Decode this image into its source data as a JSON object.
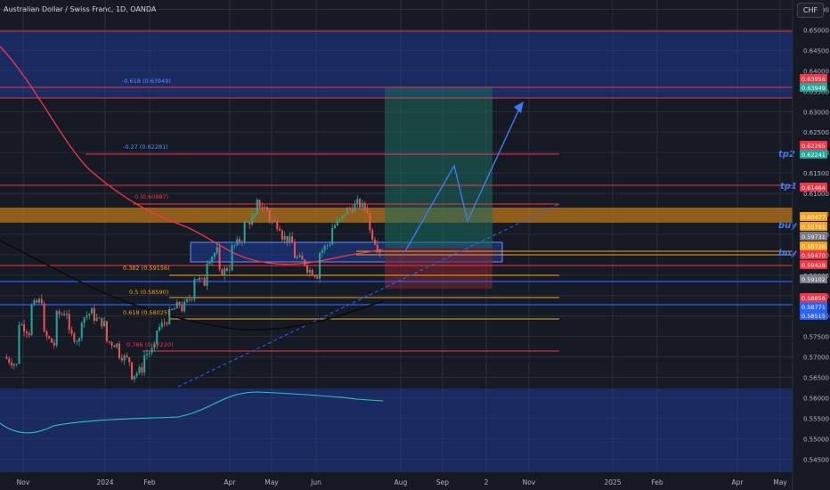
{
  "header": {
    "title": "Australian Dollar / Swiss Franc, 1D, OANDA",
    "currency_badge": "CHF"
  },
  "colors": {
    "background": "#161a25",
    "grid": "#2a2e39",
    "zone_blue": "#1f3a93",
    "zone_orange": "#b8751a",
    "red_line": "#f23645",
    "orange_line": "#f7a21b",
    "blue_line": "#2962ff",
    "target_green": "#1a6b5c",
    "candle_up": "#26a69a",
    "candle_down": "#ef5350",
    "arrow": "#3d7bf5",
    "oscillator": "#2ec4b6"
  },
  "chart_data": {
    "type": "candlestick",
    "symbol": "Australian Dollar / Swiss Franc",
    "timeframe": "1D",
    "source": "OANDA",
    "ylim": [
      0.5418,
      0.6573
    ],
    "y_ticks": [
      "0.65500",
      "0.65000",
      "0.64500",
      "0.64000",
      "0.63500",
      "0.63000",
      "0.62500",
      "0.62000",
      "0.61500",
      "0.61000",
      "0.60500",
      "0.60000",
      "0.59500",
      "0.59000",
      "0.58500",
      "0.58000",
      "0.57500",
      "0.57000",
      "0.56500",
      "0.56000",
      "0.55500",
      "0.55000",
      "0.54500"
    ],
    "x_ticks": [
      "Nov",
      "2024",
      "Feb",
      "Apr",
      "May",
      "Jun",
      "Aug",
      "Sep",
      "2",
      "Nov",
      "2025",
      "Feb",
      "Apr",
      "May"
    ],
    "price_path": [
      [
        0.57,
        0.568
      ],
      [
        0.579,
        0.576
      ],
      [
        0.582,
        0.584
      ],
      [
        0.576,
        0.573
      ],
      [
        0.58,
        0.581
      ],
      [
        0.576,
        0.574
      ],
      [
        0.579,
        0.581
      ],
      [
        0.58,
        0.578
      ],
      [
        0.574,
        0.573
      ],
      [
        0.571,
        0.569
      ],
      [
        0.565,
        0.567
      ],
      [
        0.57,
        0.572
      ],
      [
        0.576,
        0.579
      ],
      [
        0.58,
        0.583
      ],
      [
        0.581,
        0.585
      ],
      [
        0.59,
        0.588
      ],
      [
        0.593,
        0.596
      ],
      [
        0.59,
        0.592
      ],
      [
        0.596,
        0.599
      ],
      [
        0.602,
        0.604
      ],
      [
        0.608,
        0.606
      ],
      [
        0.604,
        0.602
      ],
      [
        0.6,
        0.598
      ],
      [
        0.595,
        0.593
      ],
      [
        0.592,
        0.59
      ],
      [
        0.595,
        0.598
      ],
      [
        0.601,
        0.604
      ],
      [
        0.605,
        0.607
      ],
      [
        0.608,
        0.606
      ],
      [
        0.602,
        0.596
      ]
    ],
    "fibonacci": [
      {
        "label": "-0.618 (0.63949)",
        "price": 0.63949
      },
      {
        "label": "-0.27 (0.62281)",
        "price": 0.62281
      },
      {
        "label": "0 (0.60987)",
        "price": 0.60987
      },
      {
        "label": "0.382 (0.59156)",
        "price": 0.59156
      },
      {
        "label": "0.5 (0.58590)",
        "price": 0.5859
      },
      {
        "label": "0.618 (0.58025)",
        "price": 0.58025
      },
      {
        "label": "0.786 (0.57220)",
        "price": 0.5722
      }
    ],
    "annotations": [
      {
        "text": "tp2",
        "price": 0.6226
      },
      {
        "text": "tp1",
        "price": 0.6146
      },
      {
        "text": "buy",
        "price": 0.599
      },
      {
        "text": "buy",
        "price": 0.595
      }
    ],
    "price_tags": [
      {
        "text": "0.63956",
        "price": 0.63956,
        "color": "#f23645"
      },
      {
        "text": "0.63949",
        "price": 0.6393,
        "color": "#26a69a"
      },
      {
        "text": "0.62265",
        "price": 0.62265,
        "color": "#f23645"
      },
      {
        "text": "0.62241",
        "price": 0.62235,
        "color": "#26a69a"
      },
      {
        "text": "0.61464",
        "price": 0.61464,
        "color": "#f23645"
      },
      {
        "text": "0.60477",
        "price": 0.60477,
        "color": "#f7a21b"
      },
      {
        "text": "0.59781",
        "price": 0.59781,
        "color": "#f7a21b"
      },
      {
        "text": "0.59731",
        "price": 0.59731,
        "color": "#787b86"
      },
      {
        "text": "0.59726",
        "price": 0.59726,
        "color": "#f7a21b"
      },
      {
        "text": "0.59470",
        "price": 0.5947,
        "color": "#f23645"
      },
      {
        "text": "0.59428",
        "price": 0.59428,
        "color": "#f23645"
      },
      {
        "text": "0.59102",
        "price": 0.59102,
        "color": "#787b86"
      },
      {
        "text": "0.58856",
        "price": 0.58856,
        "color": "#f23645"
      },
      {
        "text": "0.58771",
        "price": 0.58771,
        "color": "#2962ff"
      },
      {
        "text": "0.58515",
        "price": 0.58515,
        "color": "#2962ff"
      }
    ]
  }
}
